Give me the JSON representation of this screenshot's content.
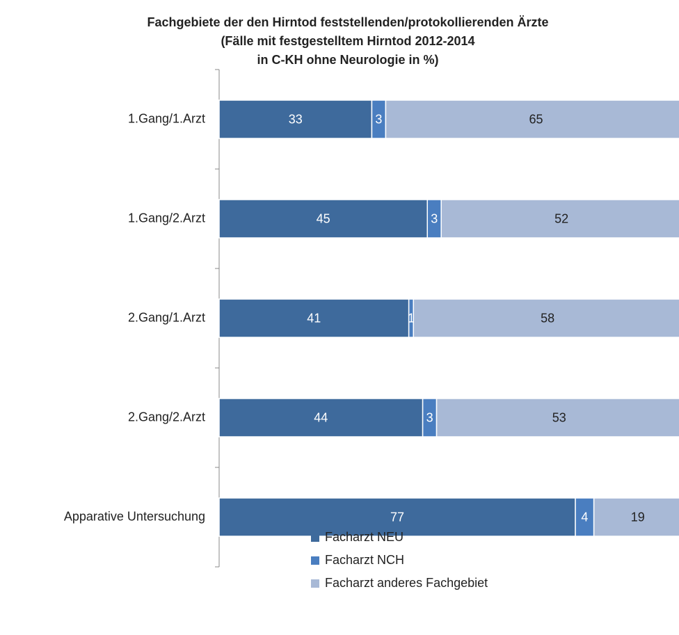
{
  "chart_data": {
    "type": "stacked-bar-horizontal",
    "title": [
      "Fachgebiete der den Hirntod feststellenden/protokollierenden Ärzte",
      "(Fälle mit festgestelltem Hirntod 2012-2014",
      "in C-KH ohne Neurologie in %)"
    ],
    "categories": [
      "1.Gang/1.Arzt",
      "1.Gang/2.Arzt",
      "2.Gang/1.Arzt",
      "2.Gang/2.Arzt",
      "Apparative Untersuchung"
    ],
    "series": [
      {
        "name": "Facharzt NEU",
        "color": "#3e6a9c",
        "label_color": "#ffffff",
        "values": [
          33,
          45,
          41,
          44,
          77
        ]
      },
      {
        "name": "Facharzt NCH",
        "color": "#4a7ec0",
        "label_color": "#ffffff",
        "values": [
          3,
          3,
          1,
          3,
          4
        ]
      },
      {
        "name": "Facharzt anderes Fachgebiet",
        "color": "#a8b9d6",
        "label_color": "#222222",
        "values": [
          65,
          52,
          58,
          53,
          19
        ]
      }
    ],
    "xlim": [
      0,
      100
    ],
    "legend": "bottom"
  }
}
